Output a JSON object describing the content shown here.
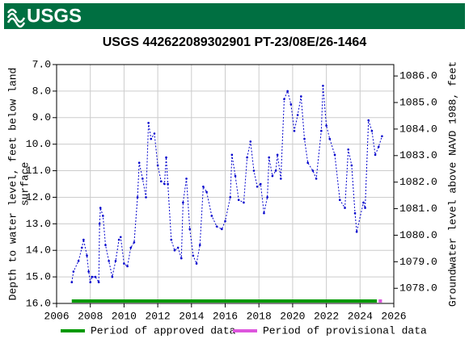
{
  "chart_data": {
    "type": "line",
    "header": "USGS",
    "title": "USGS 442622089302901 PT-23/08E/26-1464",
    "ylabel": [
      "Depth to water level, feet below land",
      "surface"
    ],
    "y2label": "Groundwater level above NAVD 1988, feet",
    "xlim": [
      2006,
      2026
    ],
    "xticks": [
      2006,
      2008,
      2010,
      2012,
      2014,
      2016,
      2018,
      2020,
      2022,
      2024,
      2026
    ],
    "ylim": [
      16,
      7
    ],
    "yticks": [
      {
        "value": 7,
        "label": "7.0"
      },
      {
        "value": 8,
        "label": "8.0"
      },
      {
        "value": 9,
        "label": "9.0"
      },
      {
        "value": 10,
        "label": "10.0"
      },
      {
        "value": 11,
        "label": "11.0"
      },
      {
        "value": 12,
        "label": "12.0"
      },
      {
        "value": 13,
        "label": "13.0"
      },
      {
        "value": 14,
        "label": "14.0"
      },
      {
        "value": 15,
        "label": "15.0"
      },
      {
        "value": 16,
        "label": "16.0"
      }
    ],
    "y2lim": [
      1077.43,
      1086.43
    ],
    "y2ticks": [
      {
        "value": 1078,
        "label": "1078.0"
      },
      {
        "value": 1079,
        "label": "1079.0"
      },
      {
        "value": 1080,
        "label": "1080.0"
      },
      {
        "value": 1081,
        "label": "1081.0"
      },
      {
        "value": 1082,
        "label": "1082.0"
      },
      {
        "value": 1083,
        "label": "1083.0"
      },
      {
        "value": 1084,
        "label": "1084.0"
      },
      {
        "value": 1085,
        "label": "1085.0"
      },
      {
        "value": 1086,
        "label": "1086.0"
      }
    ],
    "grid": true,
    "series": [
      {
        "color": "#0000cc",
        "x": [
          2006.9,
          2007.0,
          2007.3,
          2007.5,
          2007.6,
          2007.8,
          2007.9,
          2008.0,
          2008.1,
          2008.3,
          2008.5,
          2008.55,
          2008.6,
          2008.75,
          2008.9,
          2009.1,
          2009.3,
          2009.5,
          2009.7,
          2009.8,
          2010.0,
          2010.2,
          2010.4,
          2010.6,
          2010.8,
          2010.9,
          2011.1,
          2011.3,
          2011.45,
          2011.6,
          2011.8,
          2012.0,
          2012.2,
          2012.4,
          2012.5,
          2012.6,
          2012.8,
          2013.0,
          2013.2,
          2013.4,
          2013.5,
          2013.7,
          2013.9,
          2014.1,
          2014.3,
          2014.5,
          2014.7,
          2014.9,
          2015.2,
          2015.5,
          2015.8,
          2016.0,
          2016.3,
          2016.4,
          2016.6,
          2016.8,
          2017.1,
          2017.3,
          2017.5,
          2017.7,
          2017.9,
          2018.1,
          2018.3,
          2018.5,
          2018.6,
          2018.8,
          2019.0,
          2019.1,
          2019.3,
          2019.5,
          2019.7,
          2019.9,
          2020.1,
          2020.3,
          2020.5,
          2020.7,
          2020.9,
          2021.2,
          2021.4,
          2021.7,
          2021.8,
          2022.0,
          2022.2,
          2022.5,
          2022.8,
          2023.1,
          2023.3,
          2023.5,
          2023.7,
          2023.8,
          2024.2,
          2024.3,
          2024.5,
          2024.7,
          2024.9,
          2025.1,
          2025.3
        ],
        "values": [
          15.2,
          14.8,
          14.4,
          13.9,
          13.6,
          14.2,
          14.8,
          15.2,
          15.0,
          15.0,
          15.2,
          13.0,
          12.4,
          12.7,
          13.8,
          14.4,
          15.0,
          14.4,
          13.6,
          13.5,
          14.5,
          14.6,
          13.9,
          13.7,
          12.0,
          10.7,
          11.3,
          12.0,
          9.2,
          9.8,
          9.6,
          10.8,
          11.4,
          11.5,
          10.5,
          11.5,
          13.6,
          14.0,
          13.9,
          14.3,
          12.2,
          11.3,
          13.2,
          14.2,
          14.5,
          13.8,
          11.6,
          11.8,
          12.7,
          13.1,
          13.2,
          12.9,
          12.0,
          10.4,
          11.2,
          12.1,
          12.2,
          10.5,
          9.9,
          11.0,
          11.6,
          11.5,
          12.6,
          12.0,
          10.5,
          11.2,
          11.0,
          10.4,
          11.3,
          8.3,
          8.0,
          8.5,
          9.5,
          8.9,
          8.2,
          9.8,
          10.7,
          11.0,
          11.3,
          9.5,
          7.8,
          9.3,
          9.8,
          10.4,
          12.1,
          12.4,
          10.2,
          10.8,
          12.6,
          13.3,
          12.2,
          12.4,
          9.1,
          9.5,
          10.4,
          10.1,
          9.7
        ]
      }
    ],
    "periods": [
      {
        "name": "Period of approved data",
        "color": "#009900",
        "start": 2006.9,
        "end": 2025.0
      },
      {
        "name": "Period of provisional data",
        "color": "#dd55dd",
        "start": 2025.1,
        "end": 2025.3
      }
    ]
  }
}
